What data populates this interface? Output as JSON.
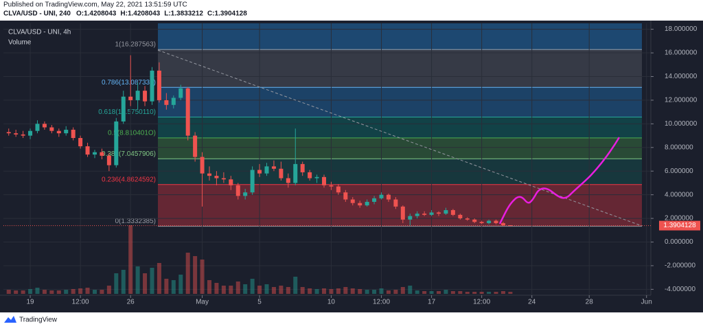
{
  "header": {
    "published": "Published on TradingView.com, May 22, 2021 13:51:59 UTC",
    "symbol": "CLVA/USD - UNI, 240",
    "ohlc": [
      {
        "key": "O:",
        "value": 1.4208043
      },
      {
        "key": "H:",
        "value": 1.4208043
      },
      {
        "key": "L:",
        "value": 1.3833212
      },
      {
        "key": "C:",
        "value": 1.3904128
      }
    ]
  },
  "footer": {
    "brand": "TradingView"
  },
  "chart_data": {
    "type": "candlestick",
    "legend": [
      "CLVA/USD - UNI, 4h",
      "Volume"
    ],
    "up_color": "#26a69a",
    "down_color": "#ef5350",
    "grid": true,
    "last_price": 1.3904128,
    "xlim": [
      -1.87,
      43.3
    ],
    "ylim": [
      -4.5,
      18.5
    ],
    "xticks": [
      {
        "value": 0,
        "label": "19"
      },
      {
        "value": 3.5,
        "label": "12:00"
      },
      {
        "value": 7,
        "label": "26"
      },
      {
        "value": 12,
        "label": "May"
      },
      {
        "value": 16,
        "label": "5"
      },
      {
        "value": 21,
        "label": "10"
      },
      {
        "value": 24.5,
        "label": "12:00"
      },
      {
        "value": 28,
        "label": "17"
      },
      {
        "value": 31.5,
        "label": "12:00"
      },
      {
        "value": 35,
        "label": "24"
      },
      {
        "value": 39,
        "label": "28"
      },
      {
        "value": 43,
        "label": "Jun"
      }
    ],
    "yticks": [
      {
        "value": 18,
        "label": "18.000000"
      },
      {
        "value": 16,
        "label": "16.000000"
      },
      {
        "value": 14,
        "label": "14.000000"
      },
      {
        "value": 12,
        "label": "12.000000"
      },
      {
        "value": 10,
        "label": "10.000000"
      },
      {
        "value": 8,
        "label": "8.000000"
      },
      {
        "value": 6,
        "label": "6.000000"
      },
      {
        "value": 4,
        "label": "4.000000"
      },
      {
        "value": 2,
        "label": "2.000000"
      },
      {
        "value": 0,
        "label": "0.000000"
      },
      {
        "value": -2,
        "label": "-2.000000"
      },
      {
        "value": -4,
        "label": "-4.000000"
      }
    ],
    "fib_levels": [
      {
        "price": 16.287563,
        "label": "1(16.287563)",
        "color": "#9598a1"
      },
      {
        "price": 13.087338,
        "label": "0.786(13.087338)",
        "color": "#64b5f6"
      },
      {
        "price": 10.575011,
        "label": "0.618(10.5750110)",
        "color": "#26a69a"
      },
      {
        "price": 8.810401,
        "label": "0.5(8.810401O)",
        "color": "#4caf50"
      },
      {
        "price": 7.0457906,
        "label": "0.382(7.0457906)",
        "color": "#81c784"
      },
      {
        "price": 4.8624592,
        "label": "0.236(4.8624592)",
        "color": "#f23645"
      },
      {
        "price": 1.3332385,
        "label": "0(1.3332385)",
        "color": "#9598a1"
      }
    ],
    "x": [
      -1.5,
      -1,
      -0.5,
      0,
      0.5,
      1,
      1.5,
      2,
      2.5,
      3,
      3.5,
      4,
      4.5,
      5,
      5.5,
      6,
      6.5,
      7,
      7.5,
      8,
      8.5,
      9,
      9.5,
      10,
      10.5,
      11,
      11.5,
      12,
      12.5,
      13,
      13.5,
      14,
      14.5,
      15,
      15.5,
      16,
      16.5,
      17,
      17.5,
      18,
      18.5,
      19,
      19.5,
      20,
      20.5,
      21,
      21.5,
      22,
      22.5,
      23,
      23.5,
      24,
      24.5,
      25,
      25.5,
      26,
      26.5,
      27,
      27.5,
      28,
      28.5,
      29,
      29.5,
      30,
      30.5,
      31,
      31.5,
      32,
      32.5,
      33,
      33.5
    ],
    "open": [
      9.3,
      9.2,
      9.1,
      9.0,
      9.4,
      10.0,
      9.7,
      9.4,
      9.2,
      9.5,
      8.8,
      8.1,
      7.4,
      7.6,
      7.3,
      6.5,
      10.2,
      12.3,
      12.0,
      12.8,
      11.9,
      14.5,
      12.0,
      11.6,
      12.2,
      13.0,
      9.0,
      7.2,
      5.8,
      5.6,
      5.4,
      5.3,
      4.8,
      3.9,
      4.2,
      6.1,
      5.8,
      6.4,
      6.2,
      5.4,
      5.0,
      6.6,
      5.9,
      5.4,
      5.5,
      4.8,
      4.7,
      4.2,
      3.6,
      3.3,
      3.1,
      3.4,
      3.7,
      4.0,
      3.6,
      3.0,
      1.9,
      2.2,
      2.4,
      2.3,
      2.5,
      2.4,
      2.7,
      2.3,
      2.0,
      1.9,
      1.7,
      1.6,
      1.8,
      1.6,
      1.42
    ],
    "high": [
      9.6,
      9.5,
      9.4,
      9.6,
      10.3,
      10.2,
      9.9,
      9.6,
      9.8,
      9.7,
      9.0,
      8.4,
      7.8,
      7.9,
      7.5,
      10.5,
      12.8,
      15.8,
      13.5,
      13.2,
      14.8,
      15.2,
      12.6,
      12.4,
      13.3,
      13.1,
      9.3,
      7.6,
      6.4,
      6.0,
      5.9,
      5.6,
      5.0,
      4.5,
      6.4,
      6.6,
      6.7,
      6.9,
      6.8,
      5.8,
      9.6,
      6.8,
      6.1,
      5.7,
      5.7,
      5.1,
      4.9,
      4.4,
      3.8,
      3.5,
      3.6,
      3.9,
      4.2,
      4.1,
      3.8,
      3.1,
      2.4,
      2.6,
      2.6,
      2.7,
      2.6,
      2.9,
      2.8,
      2.4,
      2.1,
      2.0,
      1.8,
      1.9,
      1.9,
      1.7,
      1.42
    ],
    "low": [
      9.0,
      8.9,
      8.8,
      8.7,
      9.2,
      9.5,
      9.2,
      8.9,
      9.0,
      8.6,
      7.9,
      7.2,
      7.1,
      7.0,
      6.0,
      6.3,
      10.0,
      11.5,
      11.2,
      11.5,
      11.6,
      11.8,
      11.2,
      11.3,
      12.0,
      8.6,
      6.8,
      3.0,
      5.2,
      4.8,
      5.0,
      4.4,
      3.6,
      3.6,
      4.0,
      5.5,
      5.6,
      6.0,
      5.2,
      4.6,
      4.8,
      5.6,
      5.2,
      5.0,
      4.6,
      4.4,
      4.0,
      3.4,
      3.1,
      2.9,
      3.0,
      3.2,
      3.6,
      3.4,
      2.8,
      1.6,
      1.4,
      2.0,
      2.2,
      2.2,
      2.2,
      2.3,
      2.2,
      1.9,
      1.8,
      1.6,
      1.5,
      1.5,
      1.5,
      1.38,
      1.38
    ],
    "close": [
      9.2,
      9.1,
      9.0,
      9.4,
      10.0,
      9.7,
      9.4,
      9.2,
      9.5,
      8.8,
      8.1,
      7.4,
      7.6,
      7.3,
      6.5,
      10.2,
      12.3,
      12.0,
      12.8,
      11.9,
      14.5,
      12.0,
      11.6,
      12.2,
      13.0,
      9.0,
      7.2,
      5.8,
      5.6,
      5.4,
      5.3,
      4.8,
      3.9,
      4.2,
      6.1,
      5.8,
      6.4,
      6.2,
      5.4,
      5.0,
      6.6,
      5.9,
      5.4,
      5.5,
      4.8,
      4.7,
      4.2,
      3.6,
      3.3,
      3.1,
      3.4,
      3.7,
      4.0,
      3.6,
      3.0,
      1.9,
      2.2,
      2.4,
      2.3,
      2.5,
      2.4,
      2.7,
      2.3,
      2.0,
      1.9,
      1.7,
      1.6,
      1.8,
      1.6,
      1.42,
      1.39
    ],
    "volume_lim": [
      0,
      100
    ],
    "volume": [
      6,
      5,
      5,
      7,
      9,
      6,
      5,
      5,
      6,
      7,
      8,
      9,
      6,
      6,
      12,
      30,
      35,
      100,
      40,
      30,
      38,
      45,
      22,
      20,
      28,
      60,
      55,
      50,
      20,
      16,
      12,
      12,
      18,
      14,
      22,
      12,
      14,
      10,
      12,
      10,
      25,
      10,
      8,
      7,
      8,
      7,
      8,
      10,
      8,
      7,
      6,
      6,
      8,
      5,
      6,
      10,
      12,
      5,
      4,
      4,
      4,
      6,
      4,
      4,
      3,
      3,
      3,
      3,
      3,
      4,
      3
    ]
  }
}
